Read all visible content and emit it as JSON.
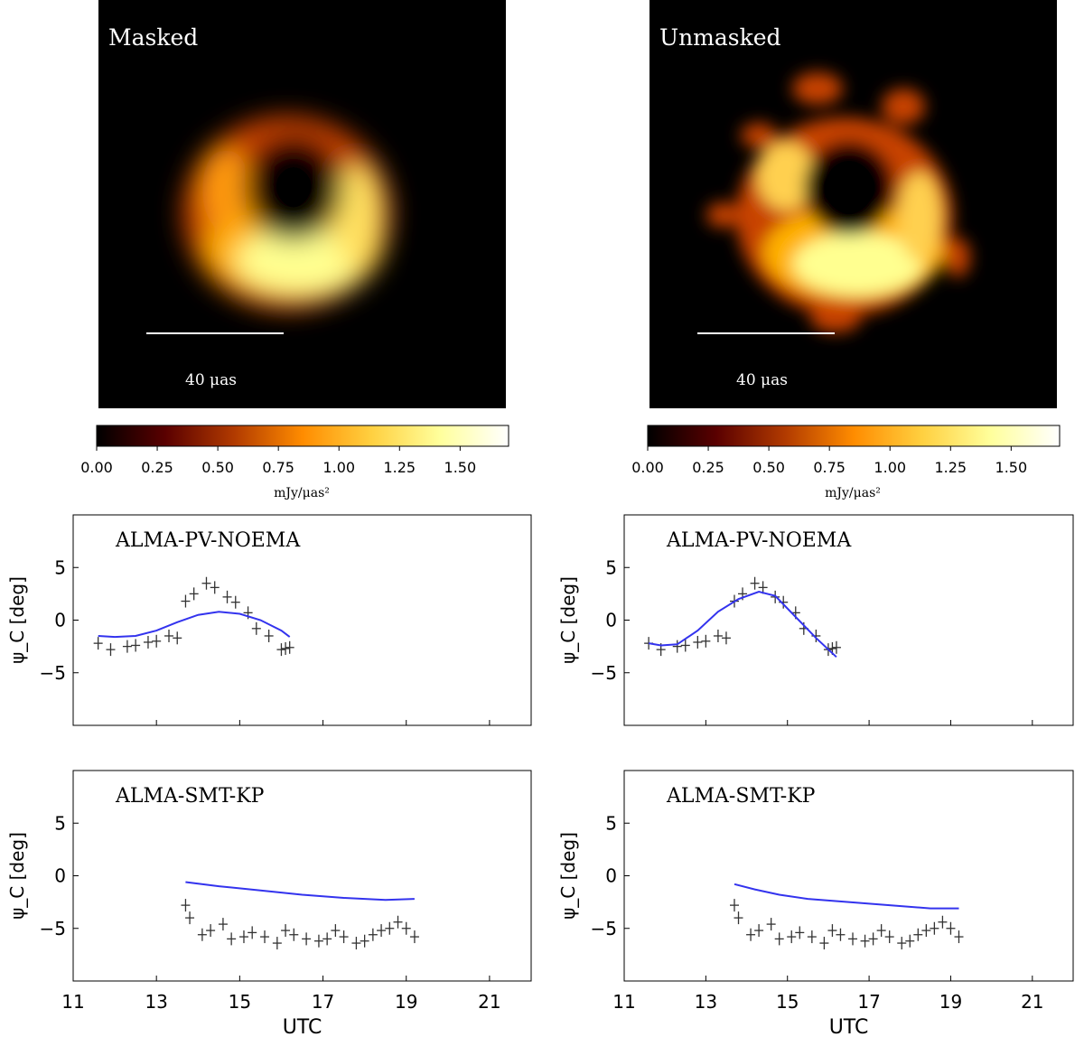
{
  "panels": [
    {
      "label": "Masked",
      "scalebar_label": "40 μas",
      "colorbar_label": "mJy/μas²"
    },
    {
      "label": "Unmasked",
      "scalebar_label": "40 μas",
      "colorbar_label": "mJy/μas²"
    }
  ],
  "colorbar": {
    "range": [
      0,
      1.7
    ],
    "ticks": [
      "0.00",
      "0.25",
      "0.50",
      "0.75",
      "1.00",
      "1.25",
      "1.50"
    ],
    "tick_values": [
      0,
      0.25,
      0.5,
      0.75,
      1.0,
      1.25,
      1.5
    ],
    "colormap": "afmhot",
    "colors": [
      "#000000",
      "#5a0000",
      "#b13a00",
      "#ff8c00",
      "#ffd040",
      "#ffff9c",
      "#ffffff"
    ]
  },
  "chart_data": [
    {
      "type": "line",
      "title": "ALMA-PV-NOEMA",
      "xlabel": "",
      "ylabel": "ψ_C [deg]",
      "xlim": [
        11,
        22
      ],
      "ylim": [
        -10,
        10
      ],
      "xticks": [
        11,
        13,
        15,
        17,
        19,
        21
      ],
      "yticks": [
        5,
        0,
        -5
      ],
      "ytick_labels": [
        "5",
        "0",
        "−5"
      ],
      "series": [
        {
          "style": "points",
          "x": [
            11.6,
            11.9,
            12.3,
            12.5,
            12.8,
            13.0,
            13.3,
            13.5,
            13.7,
            13.9,
            14.2,
            14.4,
            14.7,
            14.9,
            15.2,
            15.4,
            15.7,
            16.0,
            16.1,
            16.2
          ],
          "y": [
            -2.2,
            -2.8,
            -2.5,
            -2.4,
            -2.1,
            -2.0,
            -1.5,
            -1.7,
            1.8,
            2.5,
            3.5,
            3.1,
            2.2,
            1.7,
            0.7,
            -0.8,
            -1.5,
            -2.8,
            -2.7,
            -2.6
          ]
        },
        {
          "style": "line",
          "color": "#3333ee",
          "x": [
            11.6,
            12.0,
            12.5,
            13.0,
            13.5,
            14.0,
            14.5,
            15.0,
            15.5,
            16.0,
            16.2
          ],
          "y": [
            -1.5,
            -1.6,
            -1.5,
            -1.0,
            -0.2,
            0.5,
            0.8,
            0.6,
            0.0,
            -1.0,
            -1.6
          ]
        }
      ]
    },
    {
      "type": "line",
      "title": "ALMA-PV-NOEMA",
      "xlabel": "",
      "ylabel": "ψ_C [deg]",
      "xlim": [
        11,
        22
      ],
      "ylim": [
        -10,
        10
      ],
      "xticks": [
        11,
        13,
        15,
        17,
        19,
        21
      ],
      "yticks": [
        5,
        0,
        -5
      ],
      "ytick_labels": [
        "5",
        "0",
        "−5"
      ],
      "series": [
        {
          "style": "points",
          "x": [
            11.6,
            11.9,
            12.3,
            12.5,
            12.8,
            13.0,
            13.3,
            13.5,
            13.7,
            13.9,
            14.2,
            14.4,
            14.7,
            14.9,
            15.2,
            15.4,
            15.7,
            16.0,
            16.1,
            16.2
          ],
          "y": [
            -2.2,
            -2.8,
            -2.5,
            -2.4,
            -2.1,
            -2.0,
            -1.5,
            -1.7,
            1.8,
            2.5,
            3.5,
            3.1,
            2.2,
            1.7,
            0.7,
            -0.8,
            -1.5,
            -2.8,
            -2.7,
            -2.6
          ]
        },
        {
          "style": "line",
          "color": "#3333ee",
          "x": [
            11.6,
            11.9,
            12.3,
            12.8,
            13.3,
            13.8,
            14.3,
            14.7,
            15.2,
            15.7,
            16.2
          ],
          "y": [
            -2.2,
            -2.4,
            -2.3,
            -1.0,
            0.8,
            2.0,
            2.7,
            2.3,
            0.3,
            -1.7,
            -3.5
          ]
        }
      ]
    },
    {
      "type": "line",
      "title": "ALMA-SMT-KP",
      "xlabel": "UTC",
      "ylabel": "ψ_C [deg]",
      "xlim": [
        11,
        22
      ],
      "ylim": [
        -10,
        10
      ],
      "xticks": [
        11,
        13,
        15,
        17,
        19,
        21
      ],
      "yticks": [
        5,
        0,
        -5
      ],
      "ytick_labels": [
        "5",
        "0",
        "−5"
      ],
      "series": [
        {
          "style": "points",
          "x": [
            13.7,
            13.8,
            14.1,
            14.3,
            14.6,
            14.8,
            15.1,
            15.3,
            15.6,
            15.9,
            16.1,
            16.3,
            16.6,
            16.9,
            17.1,
            17.3,
            17.5,
            17.8,
            18.0,
            18.2,
            18.4,
            18.6,
            18.8,
            19.0,
            19.2
          ],
          "y": [
            -2.8,
            -4.0,
            -5.6,
            -5.2,
            -4.6,
            -6.0,
            -5.8,
            -5.4,
            -5.8,
            -6.4,
            -5.2,
            -5.6,
            -6.0,
            -6.2,
            -6.0,
            -5.2,
            -5.8,
            -6.4,
            -6.2,
            -5.6,
            -5.2,
            -5.0,
            -4.4,
            -5.0,
            -5.8
          ]
        },
        {
          "style": "line",
          "color": "#3333ee",
          "x": [
            13.7,
            14.5,
            15.5,
            16.5,
            17.5,
            18.5,
            19.2
          ],
          "y": [
            -0.6,
            -1.0,
            -1.4,
            -1.8,
            -2.1,
            -2.3,
            -2.2
          ]
        }
      ]
    },
    {
      "type": "line",
      "title": "ALMA-SMT-KP",
      "xlabel": "UTC",
      "ylabel": "ψ_C [deg]",
      "xlim": [
        11,
        22
      ],
      "ylim": [
        -10,
        10
      ],
      "xticks": [
        11,
        13,
        15,
        17,
        19,
        21
      ],
      "yticks": [
        5,
        0,
        -5
      ],
      "ytick_labels": [
        "5",
        "0",
        "−5"
      ],
      "series": [
        {
          "style": "points",
          "x": [
            13.7,
            13.8,
            14.1,
            14.3,
            14.6,
            14.8,
            15.1,
            15.3,
            15.6,
            15.9,
            16.1,
            16.3,
            16.6,
            16.9,
            17.1,
            17.3,
            17.5,
            17.8,
            18.0,
            18.2,
            18.4,
            18.6,
            18.8,
            19.0,
            19.2
          ],
          "y": [
            -2.8,
            -4.0,
            -5.6,
            -5.2,
            -4.6,
            -6.0,
            -5.8,
            -5.4,
            -5.8,
            -6.4,
            -5.2,
            -5.6,
            -6.0,
            -6.2,
            -6.0,
            -5.2,
            -5.8,
            -6.4,
            -6.2,
            -5.6,
            -5.2,
            -5.0,
            -4.4,
            -5.0,
            -5.8
          ]
        },
        {
          "style": "line",
          "color": "#3333ee",
          "x": [
            13.7,
            14.2,
            14.8,
            15.5,
            16.5,
            17.5,
            18.5,
            19.2
          ],
          "y": [
            -0.8,
            -1.3,
            -1.8,
            -2.2,
            -2.5,
            -2.8,
            -3.1,
            -3.1
          ]
        }
      ]
    }
  ]
}
